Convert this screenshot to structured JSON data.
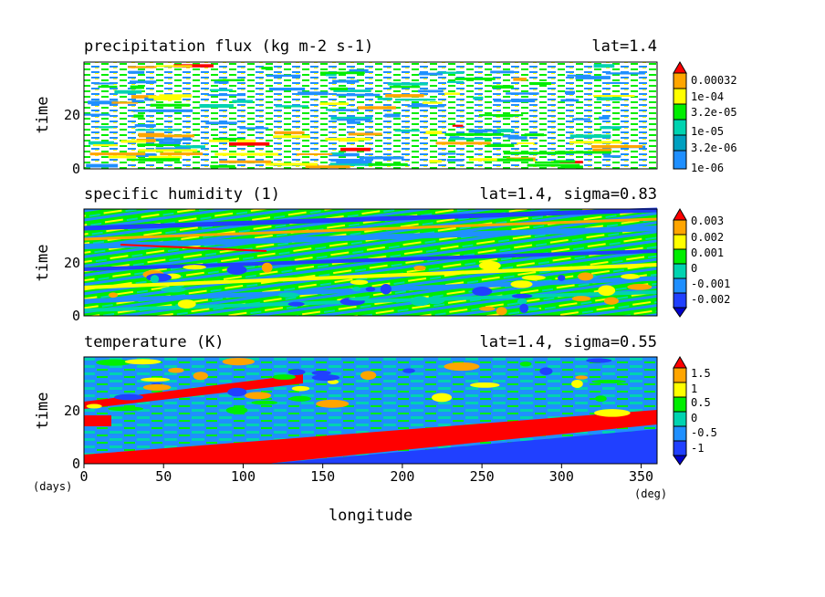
{
  "chart_data": [
    {
      "type": "heatmap",
      "title": "precipitation flux (kg m-2 s-1)",
      "subtitle": "lat=1.4",
      "xlabel": "longitude",
      "ylabel": "time",
      "xlim": [
        0,
        360
      ],
      "ylim": [
        0,
        40
      ],
      "yticks": [
        0,
        20
      ],
      "colorbar_labels": [
        "0.00032",
        "1e-04",
        "3.2e-05",
        "1e-05",
        "3.2e-06",
        "1e-06"
      ],
      "colors": [
        "#ffffff",
        "#1f8fff",
        "#00d3b0",
        "#00ee00",
        "#ffff00",
        "#ffa500",
        "#ff0000"
      ],
      "pattern": "intermittent streaks drifting eastward, dense near t<10"
    },
    {
      "type": "heatmap",
      "title": "specific humidity (1)",
      "subtitle": "lat=1.4, sigma=0.83",
      "xlabel": "longitude",
      "ylabel": "time",
      "xlim": [
        0,
        360
      ],
      "ylim": [
        0,
        40
      ],
      "yticks": [
        0,
        20
      ],
      "colorbar_labels": [
        "0.003",
        "0.002",
        "0.001",
        "0",
        "-0.001",
        "-0.002"
      ],
      "colors": [
        "#2040ff",
        "#1f8fff",
        "#00d3b0",
        "#00ee00",
        "#ffff00",
        "#ffa500",
        "#ff0000"
      ],
      "pattern": "diagonal bands sloping up-right"
    },
    {
      "type": "heatmap",
      "title": "temperature (K)",
      "subtitle": "lat=1.4, sigma=0.55",
      "xlabel": "longitude",
      "ylabel": "time",
      "xlim": [
        0,
        360
      ],
      "ylim": [
        0,
        40
      ],
      "xticks": [
        0,
        50,
        100,
        150,
        200,
        250,
        300,
        350
      ],
      "yticks": [
        0,
        20
      ],
      "x_unit": "(deg)",
      "y_unit": "(days)",
      "colorbar_labels": [
        "1.5",
        "1",
        "0.5",
        "0",
        "-0.5",
        "-1"
      ],
      "colors": [
        "#2040ff",
        "#1f8fff",
        "#00d3b0",
        "#00ee00",
        "#ffff00",
        "#ffa500",
        "#ff0000"
      ],
      "pattern": "strong warm red band from (0,0) to (360,20); second band near t=20-30"
    }
  ]
}
